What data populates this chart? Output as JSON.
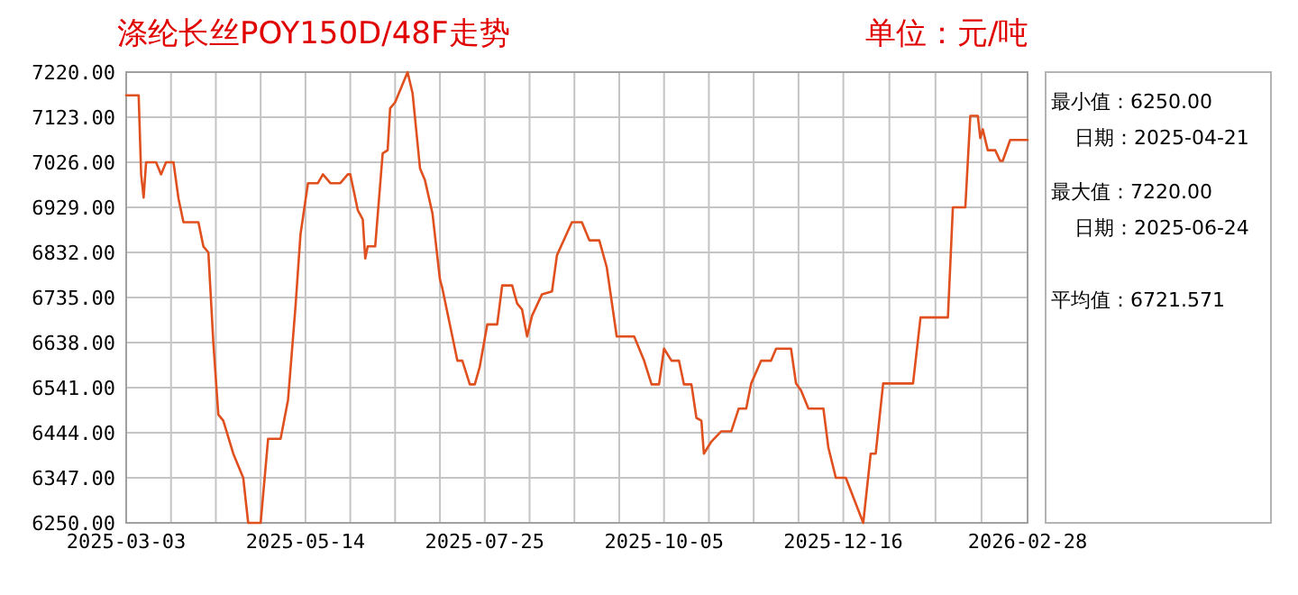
{
  "chart_data": {
    "type": "line",
    "title": "涤纶长丝POY150D/48F走势",
    "subtitle": "单位：元/吨",
    "annotations": [
      "最小值：6250.00",
      "日期：2025-04-21",
      "最大值：7220.00",
      "日期：2025-06-24",
      "平均值：6721.571"
    ],
    "x": [
      "2025-03-03",
      "2025-03-08",
      "2025-03-09",
      "2025-03-10",
      "2025-03-11",
      "2025-03-15",
      "2025-03-17",
      "2025-03-19",
      "2025-03-22",
      "2025-03-24",
      "2025-03-26",
      "2025-04-01",
      "2025-04-03",
      "2025-04-05",
      "2025-04-07",
      "2025-04-09",
      "2025-04-11",
      "2025-04-15",
      "2025-04-19",
      "2025-04-21",
      "2025-04-26",
      "2025-04-29",
      "2025-05-04",
      "2025-05-07",
      "2025-05-10",
      "2025-05-12",
      "2025-05-15",
      "2025-05-19",
      "2025-05-21",
      "2025-05-24",
      "2025-05-28",
      "2025-05-31",
      "2025-06-01",
      "2025-06-04",
      "2025-06-06",
      "2025-06-07",
      "2025-06-08",
      "2025-06-11",
      "2025-06-14",
      "2025-06-16",
      "2025-06-17",
      "2025-06-19",
      "2025-06-24",
      "2025-06-26",
      "2025-06-29",
      "2025-07-01",
      "2025-07-04",
      "2025-07-07",
      "2025-07-08",
      "2025-07-14",
      "2025-07-16",
      "2025-07-19",
      "2025-07-21",
      "2025-07-23",
      "2025-07-26",
      "2025-07-30",
      "2025-08-01",
      "2025-08-05",
      "2025-08-07",
      "2025-08-09",
      "2025-08-11",
      "2025-08-13",
      "2025-08-17",
      "2025-08-21",
      "2025-08-23",
      "2025-08-29",
      "2025-09-02",
      "2025-09-05",
      "2025-09-09",
      "2025-09-12",
      "2025-09-16",
      "2025-09-23",
      "2025-09-27",
      "2025-09-30",
      "2025-10-03",
      "2025-10-05",
      "2025-10-08",
      "2025-10-11",
      "2025-10-13",
      "2025-10-16",
      "2025-10-18",
      "2025-10-20",
      "2025-10-21",
      "2025-10-24",
      "2025-10-28",
      "2025-11-01",
      "2025-11-04",
      "2025-11-07",
      "2025-11-09",
      "2025-11-13",
      "2025-11-17",
      "2025-11-19",
      "2025-11-25",
      "2025-11-27",
      "2025-11-29",
      "2025-12-02",
      "2025-12-08",
      "2025-12-10",
      "2025-12-13",
      "2025-12-17",
      "2025-12-24",
      "2025-12-27",
      "2025-12-29",
      "2026-01-01",
      "2026-01-13",
      "2026-01-16",
      "2026-01-27",
      "2026-01-29",
      "2026-02-03",
      "2026-02-05",
      "2026-02-08",
      "2026-02-09",
      "2026-02-10",
      "2026-02-12",
      "2026-02-15",
      "2026-02-17",
      "2026-02-18",
      "2026-02-21",
      "2026-02-28"
    ],
    "values": [
      7170,
      7170,
      7000,
      6950,
      7026,
      7026,
      7000,
      7026,
      7026,
      6948,
      6897,
      6897,
      6845,
      6832,
      6638,
      6483,
      6470,
      6399,
      6347,
      6250,
      6250,
      6431,
      6431,
      6515,
      6716,
      6871,
      6981,
      6981,
      7000,
      6981,
      6981,
      7000,
      7000,
      6923,
      6903,
      6819,
      6845,
      6845,
      7045,
      7052,
      7142,
      7155,
      7220,
      7175,
      7013,
      6987,
      6916,
      6774,
      6754,
      6599,
      6599,
      6548,
      6548,
      6586,
      6677,
      6677,
      6761,
      6761,
      6722,
      6709,
      6651,
      6696,
      6742,
      6748,
      6826,
      6897,
      6897,
      6858,
      6858,
      6800,
      6651,
      6651,
      6599,
      6548,
      6548,
      6625,
      6599,
      6599,
      6548,
      6548,
      6476,
      6470,
      6399,
      6425,
      6447,
      6447,
      6496,
      6496,
      6550,
      6599,
      6599,
      6625,
      6625,
      6550,
      6535,
      6496,
      6496,
      6412,
      6347,
      6347,
      6250,
      6399,
      6399,
      6550,
      6550,
      6692,
      6692,
      6929,
      6929,
      7126,
      7126,
      7078,
      7097,
      7052,
      7052,
      7029,
      7029,
      7074,
      7074
    ],
    "color": "#e0501e",
    "xlim": [
      "2025-03-03",
      "2026-02-28"
    ],
    "xticks": [
      "2025-03-03",
      "2025-05-14",
      "2025-07-25",
      "2025-10-05",
      "2025-12-16",
      "2026-02-28"
    ],
    "ylim": [
      6250,
      7220
    ],
    "yticks": [
      {
        "value": 6250,
        "label": "6250.00"
      },
      {
        "value": 6347,
        "label": "6347.00"
      },
      {
        "value": 6444,
        "label": "6444.00"
      },
      {
        "value": 6541,
        "label": "6541.00"
      },
      {
        "value": 6638,
        "label": "6638.00"
      },
      {
        "value": 6735,
        "label": "6735.00"
      },
      {
        "value": 6832,
        "label": "6832.00"
      },
      {
        "value": 6929,
        "label": "6929.00"
      },
      {
        "value": 7026,
        "label": "7026.00"
      },
      {
        "value": 7123,
        "label": "7123.00"
      },
      {
        "value": 7220,
        "label": "7220.00"
      }
    ],
    "grid": true,
    "line_style": "solid"
  }
}
